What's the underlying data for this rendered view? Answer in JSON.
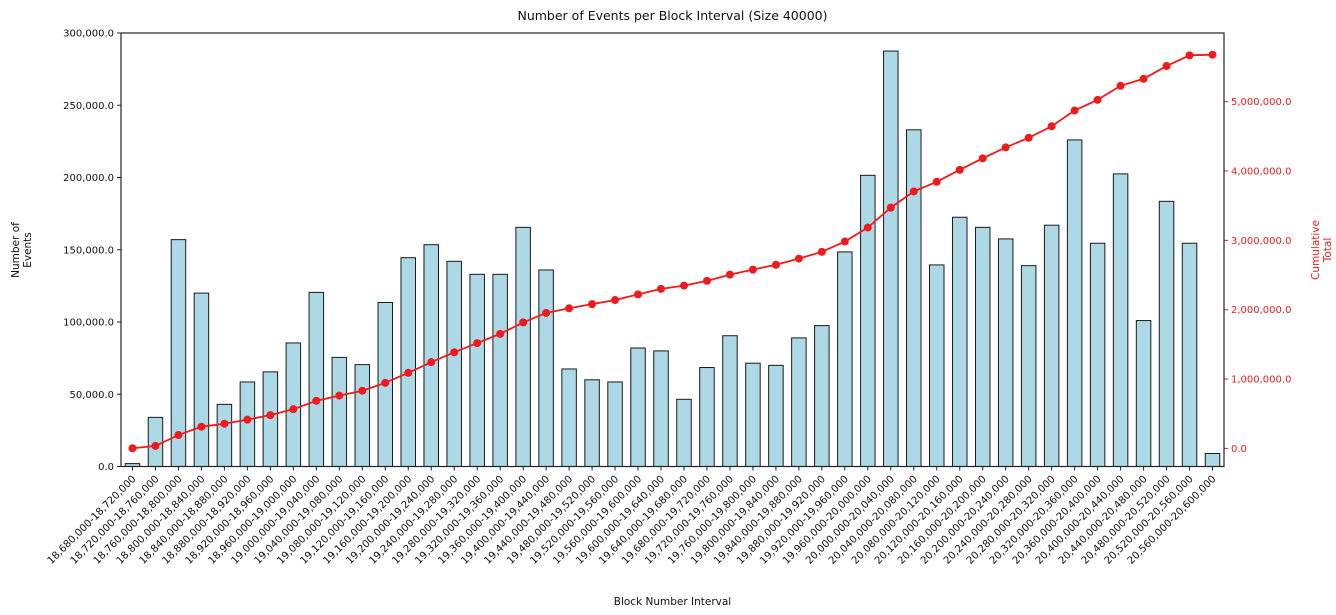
{
  "chart_data": {
    "type": "bar",
    "title": "Number of Events per Block Interval (Size 40000)",
    "xlabel": "Block Number Interval",
    "grid": false,
    "legend": "none",
    "categories": [
      "18,680,000-18,720,000",
      "18,720,000-18,760,000",
      "18,760,000-18,800,000",
      "18,800,000-18,840,000",
      "18,840,000-18,880,000",
      "18,880,000-18,920,000",
      "18,920,000-18,960,000",
      "18,960,000-19,000,000",
      "19,000,000-19,040,000",
      "19,040,000-19,080,000",
      "19,080,000-19,120,000",
      "19,120,000-19,160,000",
      "19,160,000-19,200,000",
      "19,200,000-19,240,000",
      "19,240,000-19,280,000",
      "19,280,000-19,320,000",
      "19,320,000-19,360,000",
      "19,360,000-19,400,000",
      "19,400,000-19,440,000",
      "19,440,000-19,480,000",
      "19,480,000-19,520,000",
      "19,520,000-19,560,000",
      "19,560,000-19,600,000",
      "19,600,000-19,640,000",
      "19,640,000-19,680,000",
      "19,680,000-19,720,000",
      "19,720,000-19,760,000",
      "19,760,000-19,800,000",
      "19,800,000-19,840,000",
      "19,840,000-19,880,000",
      "19,880,000-19,920,000",
      "19,920,000-19,960,000",
      "19,960,000-20,000,000",
      "20,000,000-20,040,000",
      "20,040,000-20,080,000",
      "20,080,000-20,120,000",
      "20,120,000-20,160,000",
      "20,160,000-20,200,000",
      "20,200,000-20,240,000",
      "20,240,000-20,280,000",
      "20,280,000-20,320,000",
      "20,320,000-20,360,000",
      "20,360,000-20,400,000",
      "20,400,000-20,440,000",
      "20,440,000-20,480,000",
      "20,480,000-20,520,000",
      "20,520,000-20,560,000",
      "20,560,000-20,600,000"
    ],
    "series": [
      {
        "name": "Number of Events",
        "type": "bar",
        "axis": "left",
        "values": [
          2000,
          34000,
          157000,
          120000,
          43000,
          58500,
          65500,
          85500,
          120500,
          75500,
          70500,
          113500,
          144500,
          153500,
          142000,
          133000,
          133000,
          165500,
          136000,
          67500,
          60000,
          58500,
          82000,
          80000,
          46500,
          68500,
          90500,
          71500,
          70000,
          89000,
          97500,
          148500,
          201500,
          287500,
          233000,
          139500,
          172500,
          165500,
          157500,
          139000,
          167000,
          226000,
          154500,
          202500,
          101000,
          183500,
          154500,
          9000
        ]
      },
      {
        "name": "Cumulative Total",
        "type": "line",
        "axis": "right",
        "marker": "circle",
        "values": [
          2000,
          36000,
          193000,
          313000,
          356000,
          414500,
          480000,
          565500,
          686000,
          761500,
          832000,
          945500,
          1090000,
          1243500,
          1385500,
          1518500,
          1651500,
          1817000,
          1953000,
          2020500,
          2080500,
          2139000,
          2221000,
          2301000,
          2347500,
          2416000,
          2506500,
          2578000,
          2648000,
          2737000,
          2834500,
          2983000,
          3184500,
          3472000,
          3705000,
          3844500,
          4017000,
          4182500,
          4340000,
          4479000,
          4646000,
          4872000,
          5026500,
          5229000,
          5330000,
          5513500,
          5668000,
          5677000
        ]
      }
    ],
    "left_axis": {
      "label": "Number of Events",
      "range": [
        0,
        300000
      ],
      "tick_values": [
        0,
        50000,
        100000,
        150000,
        200000,
        250000,
        300000
      ],
      "tick_labels": [
        "0.0",
        "50,000.0",
        "100,000.0",
        "150,000.0",
        "200,000.0",
        "250,000.0",
        "300,000.0"
      ]
    },
    "right_axis": {
      "label": "Cumulative Total",
      "range": [
        -261000,
        5990000
      ],
      "tick_values": [
        0,
        1000000,
        2000000,
        3000000,
        4000000,
        5000000
      ],
      "tick_labels": [
        "0.0",
        "1,000,000.0",
        "2,000,000.0",
        "3,000,000.0",
        "4,000,000.0",
        "5,000,000.0"
      ]
    }
  },
  "colors": {
    "bar_fill": "#add8e6",
    "bar_edge": "#1a1a1a",
    "line": "#ef1a1c",
    "right_axis_text": "#ef1a1c",
    "axis": "#222222",
    "text": "#111111",
    "background": "#ffffff"
  }
}
